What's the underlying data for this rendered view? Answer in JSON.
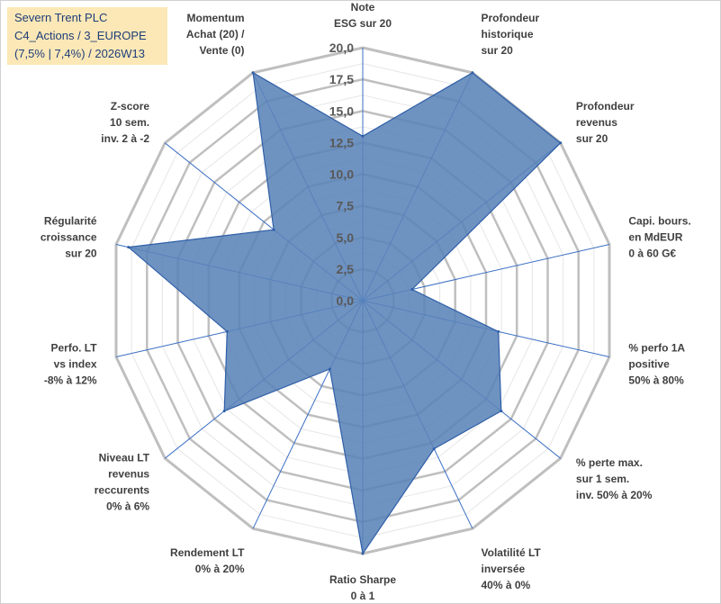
{
  "title_box": {
    "line1": "Severn Trent PLC",
    "line2": "C4_Actions / 3_EUROPE",
    "line3": "(7,5% | 7,4%) / 2026W13"
  },
  "chart_data": {
    "type": "radar",
    "title": "Severn Trent PLC",
    "rmin": 0,
    "rmax": 20,
    "ticks": [
      "0,0",
      "2,5",
      "5,0",
      "7,5",
      "10,0",
      "12,5",
      "15,0",
      "17,5",
      "20,0"
    ],
    "tick_values": [
      0,
      2.5,
      5,
      7.5,
      10,
      12.5,
      15,
      17.5,
      20
    ],
    "categories": [
      [
        "Note",
        "ESG sur 20"
      ],
      [
        "Profondeur",
        "historique",
        "sur 20"
      ],
      [
        "Profondeur",
        "revenus",
        "sur 20"
      ],
      [
        "Capi. bours.",
        "en MdEUR",
        "0 à 60 G€"
      ],
      [
        "% perfo 1A",
        "positive",
        "50% à 80%"
      ],
      [
        "% perte max.",
        "sur 1 sem.",
        "inv. 50% à 20%"
      ],
      [
        "Volatilité LT",
        "inversée",
        "40% à 0%"
      ],
      [
        "Ratio Sharpe",
        "0 à 1"
      ],
      [
        "Rendement LT",
        "0% à 20%"
      ],
      [
        "Niveau LT",
        "revenus",
        "reccurents",
        "0% à 6%"
      ],
      [
        "Perfo. LT",
        "vs index",
        "-8% à 12%"
      ],
      [
        "Régularité",
        "croissance",
        "sur 20"
      ],
      [
        "Z-score",
        "10 sem.",
        "inv. 2 à -2"
      ],
      [
        "Momentum",
        "Achat (20) /",
        "Vente (0)"
      ]
    ],
    "series": [
      {
        "name": "Severn Trent PLC",
        "values": [
          13,
          20,
          20,
          4,
          11,
          14,
          13,
          20,
          6,
          14,
          11,
          19,
          9,
          20
        ]
      }
    ],
    "colors": {
      "fill": "#5b84b8",
      "stroke": "#2f5fa8",
      "grid": "#c8c8c8",
      "spoke": "#3c6fc4"
    }
  }
}
